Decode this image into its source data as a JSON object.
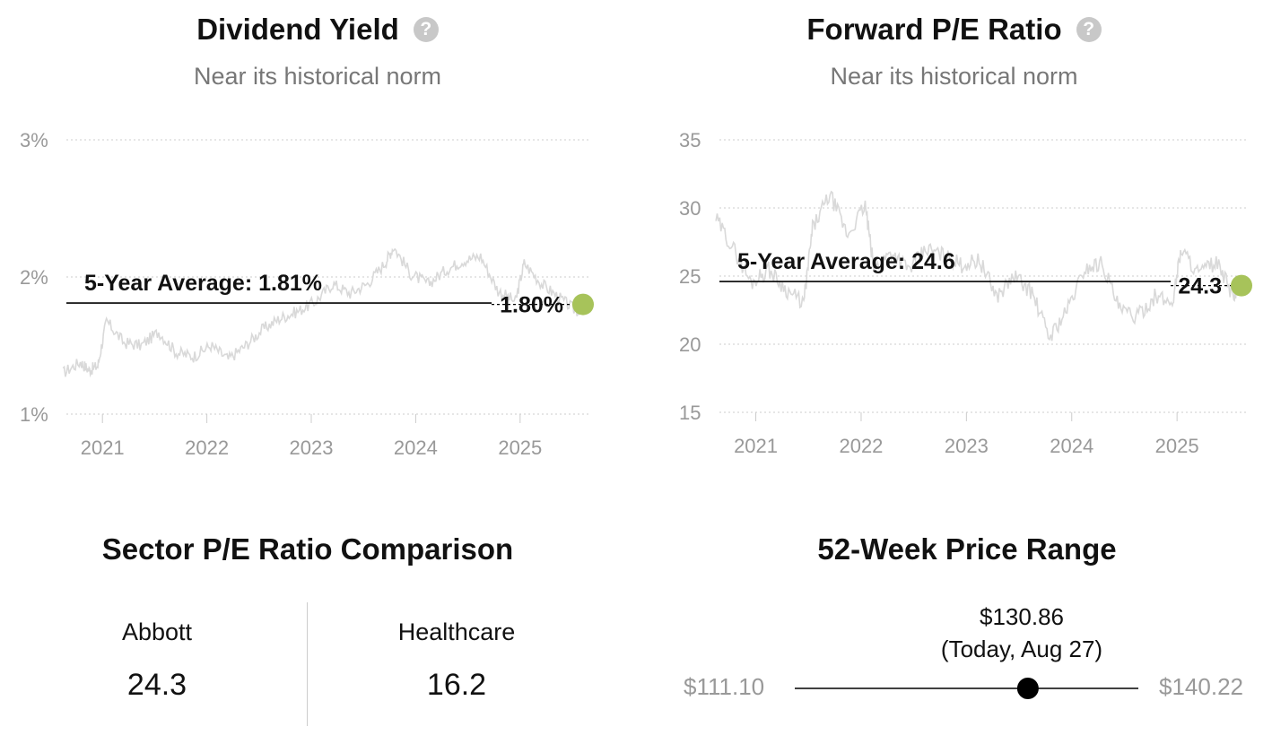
{
  "dividend": {
    "title": "Dividend Yield",
    "help_icon": "question-circle-icon",
    "subtitle": "Near its historical norm",
    "avg_label": "5-Year Average: 1.81%",
    "current_label": "1.80%"
  },
  "forward_pe": {
    "title": "Forward P/E Ratio",
    "help_icon": "question-circle-icon",
    "subtitle": "Near its historical norm",
    "avg_label": "5-Year Average: 24.6",
    "current_label": "24.3"
  },
  "sector": {
    "title": "Sector P/E Ratio Comparison",
    "items": [
      {
        "name": "Abbott",
        "value": "24.3"
      },
      {
        "name": "Healthcare",
        "value": "16.2"
      }
    ]
  },
  "price_range": {
    "title": "52-Week Price Range",
    "low": "$111.10",
    "high": "$140.22",
    "current": "$130.86",
    "current_note": "(Today, Aug 27)",
    "current_value": 130.86,
    "low_value": 111.1,
    "high_value": 140.22
  },
  "colors": {
    "series_line": "#d9d9d9",
    "avg_line": "#000000",
    "current_dot": "#a7c35a",
    "grid": "#cccccc",
    "axis_text": "#999999"
  },
  "chart_data": [
    {
      "type": "line",
      "title": "Dividend Yield",
      "subtitle": "Near its historical norm",
      "x_ticks": [
        "2021",
        "2022",
        "2023",
        "2024",
        "2025"
      ],
      "y_ticks": [
        "1%",
        "2%",
        "3%"
      ],
      "ylim": [
        1,
        3
      ],
      "xlim": [
        "2020-08-27",
        "2025-08-27"
      ],
      "grid": true,
      "five_year_average": 1.81,
      "current": 1.8,
      "series": [
        {
          "x": [
            "2020-08",
            "2020-10",
            "2020-11",
            "2020-12",
            "2021-01",
            "2021-03",
            "2021-05",
            "2021-07",
            "2021-09",
            "2021-11",
            "2022-01",
            "2022-03",
            "2022-05",
            "2022-07",
            "2022-09",
            "2022-11",
            "2023-01",
            "2023-03",
            "2023-05",
            "2023-07",
            "2023-09",
            "2023-10",
            "2023-12",
            "2024-02",
            "2024-04",
            "2024-06",
            "2024-08",
            "2024-10",
            "2024-12",
            "2025-01",
            "2025-03",
            "2025-05",
            "2025-07",
            "2025-08"
          ],
          "values": [
            1.3,
            1.38,
            1.32,
            1.35,
            1.68,
            1.52,
            1.5,
            1.6,
            1.45,
            1.42,
            1.5,
            1.4,
            1.5,
            1.62,
            1.7,
            1.75,
            1.82,
            1.95,
            1.88,
            1.95,
            2.1,
            2.22,
            2.02,
            1.95,
            2.05,
            2.12,
            2.15,
            1.9,
            1.82,
            2.1,
            1.95,
            1.85,
            1.75,
            1.8
          ]
        }
      ]
    },
    {
      "type": "line",
      "title": "Forward P/E Ratio",
      "subtitle": "Near its historical norm",
      "x_ticks": [
        "2021",
        "2022",
        "2023",
        "2024",
        "2025"
      ],
      "y_ticks": [
        "15",
        "20",
        "25",
        "30",
        "35"
      ],
      "ylim": [
        15,
        35
      ],
      "xlim": [
        "2020-08-27",
        "2025-08-27"
      ],
      "grid": true,
      "five_year_average": 24.6,
      "current": 24.3,
      "series": [
        {
          "x": [
            "2020-08",
            "2020-10",
            "2020-12",
            "2021-02",
            "2021-04",
            "2021-06",
            "2021-07",
            "2021-09",
            "2021-11",
            "2022-01",
            "2022-02",
            "2022-04",
            "2022-06",
            "2022-08",
            "2022-10",
            "2022-12",
            "2023-02",
            "2023-04",
            "2023-06",
            "2023-08",
            "2023-10",
            "2023-12",
            "2024-02",
            "2024-04",
            "2024-06",
            "2024-08",
            "2024-10",
            "2024-12",
            "2025-01",
            "2025-03",
            "2025-05",
            "2025-07",
            "2025-08"
          ],
          "values": [
            29.2,
            27.0,
            24.5,
            25.5,
            24.0,
            23.0,
            28.5,
            31.0,
            28.0,
            30.2,
            25.5,
            26.8,
            25.5,
            27.0,
            26.5,
            25.8,
            26.2,
            23.5,
            25.0,
            23.8,
            20.5,
            22.5,
            25.5,
            26.0,
            22.5,
            22.0,
            23.5,
            23.0,
            27.0,
            25.2,
            26.0,
            23.5,
            24.3
          ]
        }
      ]
    }
  ]
}
